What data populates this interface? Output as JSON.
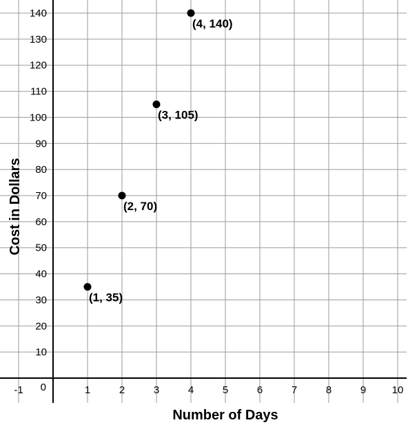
{
  "chart_data": {
    "type": "scatter",
    "xlabel": "Number of Days",
    "ylabel": "Cost in Dollars",
    "xlim": [
      -1,
      10
    ],
    "ylim": [
      0,
      140
    ],
    "x_ticks": [
      "-1",
      "0",
      "1",
      "2",
      "3",
      "4",
      "5",
      "6",
      "7",
      "8",
      "9",
      "10"
    ],
    "y_ticks": [
      "10",
      "20",
      "30",
      "40",
      "50",
      "60",
      "70",
      "80",
      "90",
      "100",
      "110",
      "120",
      "130",
      "140"
    ],
    "grid": true,
    "series": [
      {
        "points": [
          {
            "x": 1,
            "y": 35,
            "label": "(1, 35)"
          },
          {
            "x": 2,
            "y": 70,
            "label": "(2, 70)"
          },
          {
            "x": 3,
            "y": 105,
            "label": "(3, 105)"
          },
          {
            "x": 4,
            "y": 140,
            "label": "(4, 140)"
          }
        ]
      }
    ],
    "colors": {
      "points": "#000000",
      "grid": "#9a9a9a",
      "axes": "#000000"
    }
  }
}
